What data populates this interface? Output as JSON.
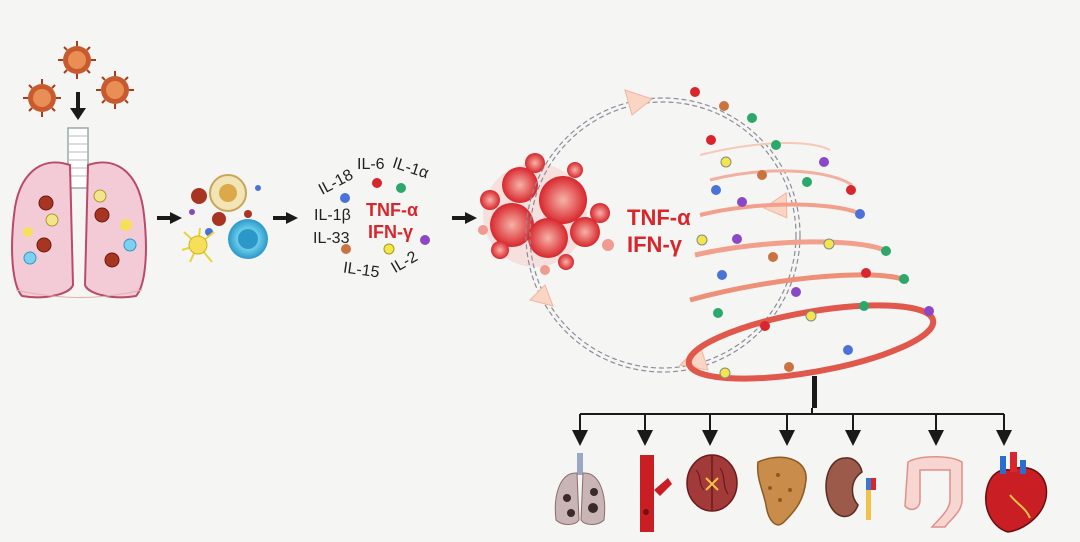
{
  "cytokines": {
    "il18": "IL-18",
    "il6": "IL-6",
    "il1a": "IL-1α",
    "il1b": "IL-1β",
    "il33": "IL-33",
    "il15": "IL-15",
    "il2": "IL-2",
    "tnf": "TNF-α",
    "ifn": "IFN-γ"
  },
  "storm": {
    "tnf": "TNF-α",
    "ifn": "IFN-γ"
  },
  "colors": {
    "accent_red": "#d8262c",
    "ring_salmon": "#f2a08c",
    "arrow_fill": "#fad5c4",
    "dot_palette": [
      "#d8262c",
      "#2ca86a",
      "#4a72d8",
      "#8a48c6",
      "#f1e64a",
      "#c9743f"
    ]
  },
  "organs": [
    "lungs-icon",
    "blood-vessel-icon",
    "brain-icon",
    "liver-icon",
    "kidney-icon",
    "intestine-icon",
    "heart-icon"
  ]
}
